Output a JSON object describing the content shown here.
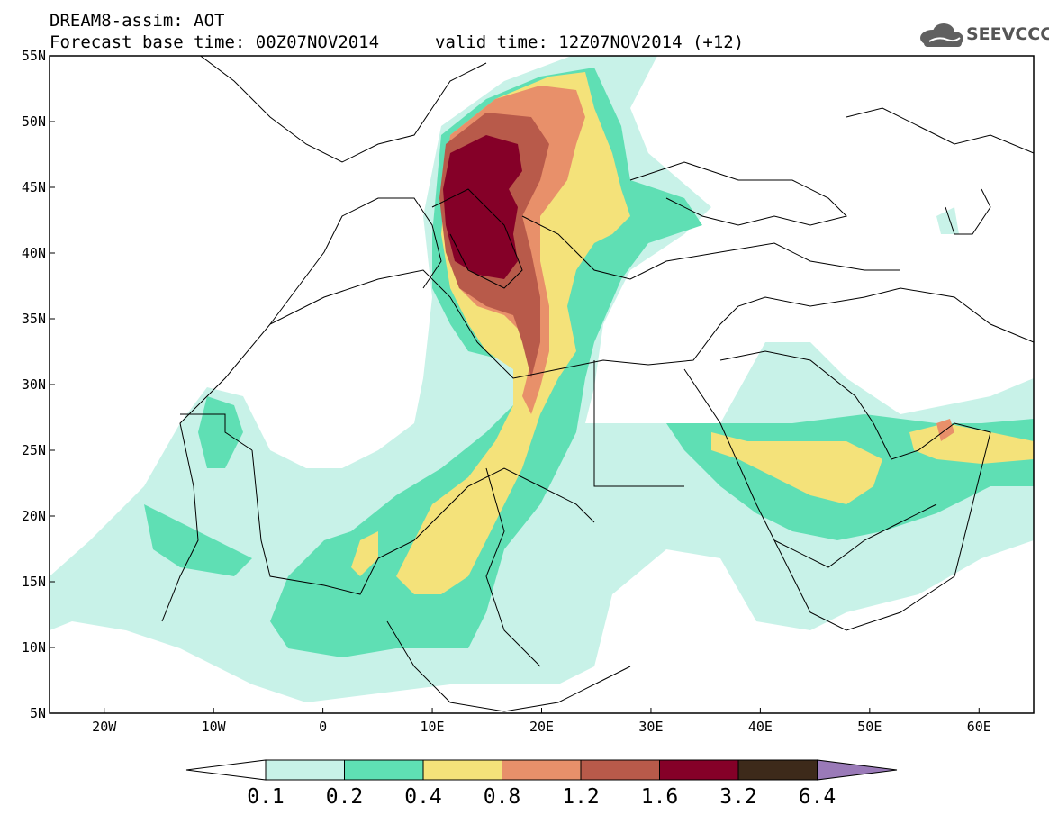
{
  "header": {
    "title": "DREAM8-assim: AOT",
    "base_time": "Forecast base time: 00Z07NOV2014",
    "valid_time": "valid time: 12Z07NOV2014 (+12)",
    "logo_text": "SEEVCCC"
  },
  "map": {
    "lon_range": [
      -25,
      65
    ],
    "lat_range": [
      5,
      55
    ],
    "lat_ticks": [
      "5N",
      "10N",
      "15N",
      "20N",
      "25N",
      "30N",
      "35N",
      "40N",
      "45N",
      "50N",
      "55N"
    ],
    "lon_ticks": [
      "20W",
      "10W",
      "0",
      "10E",
      "20E",
      "30E",
      "40E",
      "50E",
      "60E"
    ]
  },
  "colorbar": {
    "levels": [
      "0.1",
      "0.2",
      "0.4",
      "0.8",
      "1.2",
      "1.6",
      "3.2",
      "6.4"
    ],
    "colors": [
      "#ffffff",
      "#c8f2e8",
      "#5fdfb4",
      "#f4e27a",
      "#e8906a",
      "#b85a4a",
      "#850028",
      "#3d2a1a",
      "#9a7ab8"
    ]
  }
}
